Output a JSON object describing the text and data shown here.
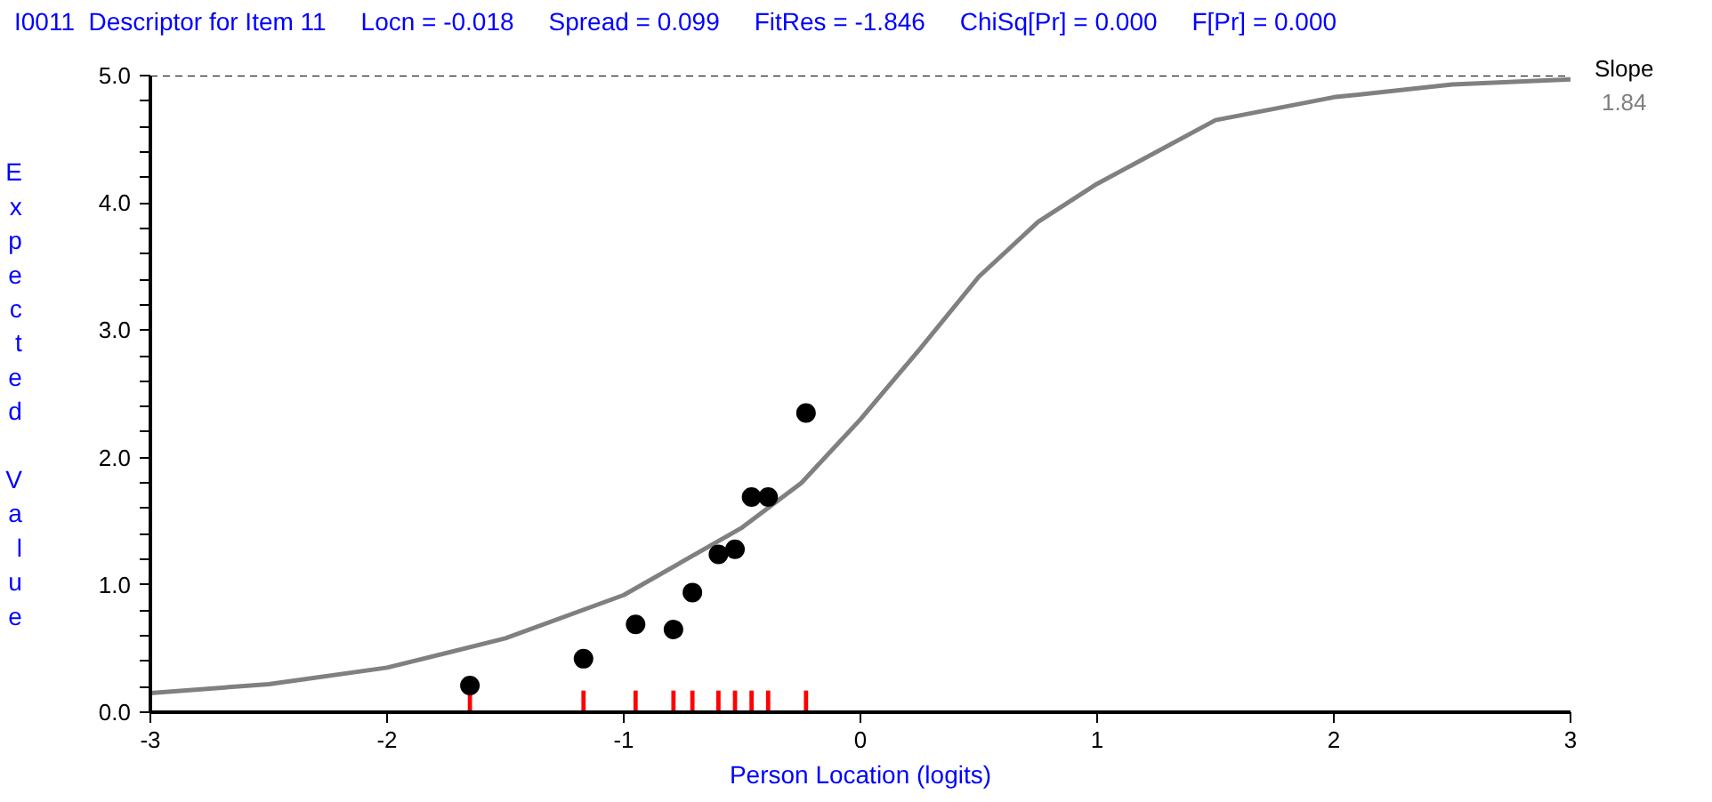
{
  "chart_data": {
    "type": "line",
    "title": "I0011  Descriptor for Item 11",
    "subtitle": "Locn = -0.018     Spread = 0.099     FitRes = -1.846     ChiSq[Pr] = 0.000     F[Pr] = 0.000",
    "xlabel": "Person Location (logits)",
    "ylabel": "Expected Value",
    "annotations": [
      "Slope",
      "1.84"
    ],
    "xlim": [
      -3,
      3
    ],
    "xticks": [
      -3,
      -2,
      -1,
      0,
      1,
      2,
      3
    ],
    "ylim": [
      0,
      5
    ],
    "yticks": [
      {
        "value": 0,
        "label": "0.0"
      },
      {
        "value": 0.2,
        "label": null
      },
      {
        "value": 0.4,
        "label": null
      },
      {
        "value": 0.6,
        "label": null
      },
      {
        "value": 0.8,
        "label": null
      },
      {
        "value": 1,
        "label": "1.0"
      },
      {
        "value": 1.2,
        "label": null
      },
      {
        "value": 1.4,
        "label": null
      },
      {
        "value": 1.6,
        "label": null
      },
      {
        "value": 1.8,
        "label": null
      },
      {
        "value": 2,
        "label": "2.0"
      },
      {
        "value": 2.2,
        "label": null
      },
      {
        "value": 2.4,
        "label": null
      },
      {
        "value": 2.6,
        "label": null
      },
      {
        "value": 2.8,
        "label": null
      },
      {
        "value": 3,
        "label": "3.0"
      },
      {
        "value": 3.2,
        "label": null
      },
      {
        "value": 3.4,
        "label": null
      },
      {
        "value": 3.6,
        "label": null
      },
      {
        "value": 3.8,
        "label": null
      },
      {
        "value": 4,
        "label": "4.0"
      },
      {
        "value": 4.2,
        "label": null
      },
      {
        "value": 4.4,
        "label": null
      },
      {
        "value": 4.6,
        "label": null
      },
      {
        "value": 4.8,
        "label": null
      },
      {
        "value": 5,
        "label": "5.0"
      }
    ],
    "grid": false,
    "ref_lines": [
      {
        "axis": "y",
        "value": 5,
        "label": null,
        "color": "#000000",
        "line_style": "dashed"
      }
    ],
    "series": [
      {
        "color": "#808080",
        "line_style": "solid",
        "x": [
          -3,
          -2.5,
          -2,
          -1.5,
          -1,
          -0.5,
          -0.25,
          0,
          0.25,
          0.5,
          0.75,
          1,
          1.5,
          2,
          2.5,
          3
        ],
        "values": [
          0.15,
          0.22,
          0.35,
          0.58,
          0.92,
          1.45,
          1.8,
          2.3,
          2.85,
          3.42,
          3.85,
          4.15,
          4.65,
          4.83,
          4.93,
          4.97
        ]
      },
      {
        "type": "bar",
        "color": "#ff0000",
        "x": [
          -1.65,
          -1.17,
          -0.95,
          -0.79,
          -0.71,
          -0.6,
          -0.53,
          -0.46,
          -0.39,
          -0.23
        ],
        "values": [
          0.17,
          0.17,
          0.17,
          0.17,
          0.17,
          0.17,
          0.17,
          0.17,
          0.17,
          0.17
        ]
      },
      {
        "type": "scatter",
        "color": "#000000",
        "marker": "circle",
        "x": [
          -1.65,
          -1.17,
          -0.95,
          -0.79,
          -0.71,
          -0.6,
          -0.53,
          -0.46,
          -0.39,
          -0.23
        ],
        "values": [
          0.21,
          0.42,
          0.69,
          0.65,
          0.94,
          1.24,
          1.28,
          1.69,
          1.69,
          2.35
        ]
      }
    ]
  }
}
